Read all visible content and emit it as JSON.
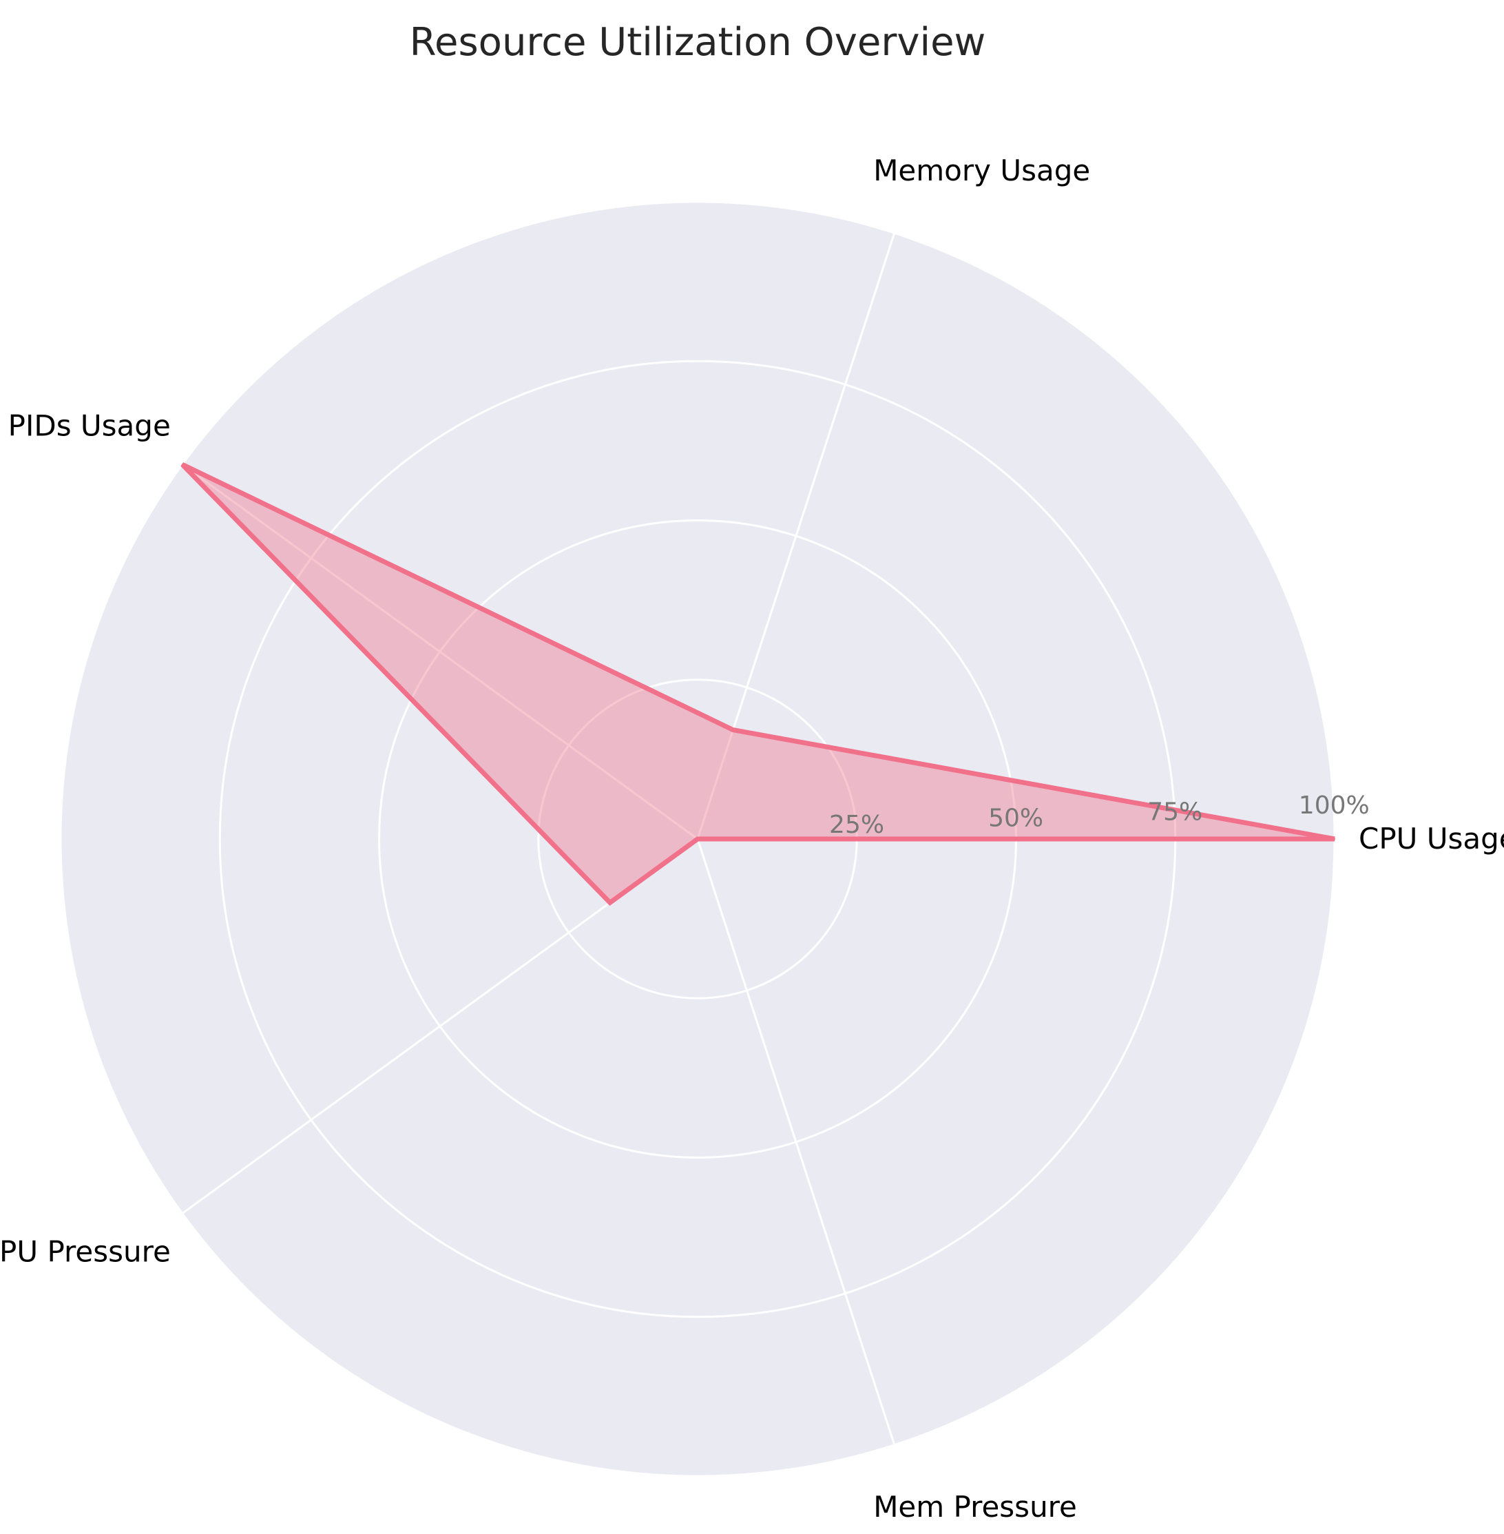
{
  "chart_data": {
    "type": "radar",
    "title": "Resource Utilization Overview",
    "categories": [
      "CPU Usage",
      "Memory Usage",
      "PIDs Usage",
      "CPU Pressure",
      "Mem Pressure"
    ],
    "values": [
      100,
      18,
      100,
      17,
      0
    ],
    "rlim": [
      0,
      100
    ],
    "rticks": [
      25,
      50,
      75,
      100
    ],
    "rtick_labels": [
      "25%",
      "50%",
      "75%",
      "100%"
    ],
    "grid": true,
    "legend": "none",
    "colors": {
      "series": "#f1708a",
      "fill": "#f1708a",
      "background": "#eaeaf2",
      "grid": "#ffffff"
    }
  }
}
